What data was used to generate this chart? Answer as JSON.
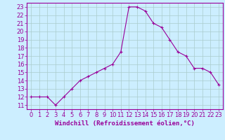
{
  "x": [
    0,
    1,
    2,
    3,
    4,
    5,
    6,
    7,
    8,
    9,
    10,
    11,
    12,
    13,
    14,
    15,
    16,
    17,
    18,
    19,
    20,
    21,
    22,
    23
  ],
  "y": [
    12,
    12,
    12,
    11,
    12,
    13,
    14,
    14.5,
    15,
    15.5,
    16,
    17.5,
    23,
    23,
    22.5,
    21,
    20.5,
    19,
    17.5,
    17,
    15.5,
    15.5,
    15,
    13.5
  ],
  "line_color": "#990099",
  "marker": "+",
  "marker_size": 3,
  "bg_color": "#cceeff",
  "grid_color": "#aacccc",
  "xlabel": "Windchill (Refroidissement éolien,°C)",
  "xlabel_fontsize": 6.5,
  "yticks": [
    11,
    12,
    13,
    14,
    15,
    16,
    17,
    18,
    19,
    20,
    21,
    22,
    23
  ],
  "xticks": [
    0,
    1,
    2,
    3,
    4,
    5,
    6,
    7,
    8,
    9,
    10,
    11,
    12,
    13,
    14,
    15,
    16,
    17,
    18,
    19,
    20,
    21,
    22,
    23
  ],
  "xlim": [
    -0.5,
    23.5
  ],
  "ylim": [
    10.5,
    23.5
  ],
  "tick_fontsize": 6
}
